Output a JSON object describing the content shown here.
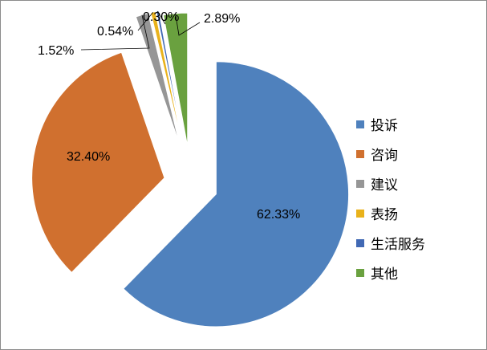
{
  "chart_data": {
    "type": "pie",
    "title": "",
    "categories": [
      "投诉",
      "咨询",
      "建议",
      "表扬",
      "生活服务",
      "其他"
    ],
    "values": [
      62.33,
      32.4,
      1.52,
      0.54,
      0.3,
      2.89
    ],
    "labels": [
      "62.33%",
      "32.40%",
      "1.52%",
      "0.54%",
      "0.30%",
      "2.89%"
    ],
    "colors": [
      "#4f81bd",
      "#d0702f",
      "#969696",
      "#e9b21b",
      "#4169b4",
      "#6aa13f"
    ],
    "exploded": true,
    "legend_position": "right",
    "start_angle_deg": 0,
    "direction": "clockwise"
  }
}
